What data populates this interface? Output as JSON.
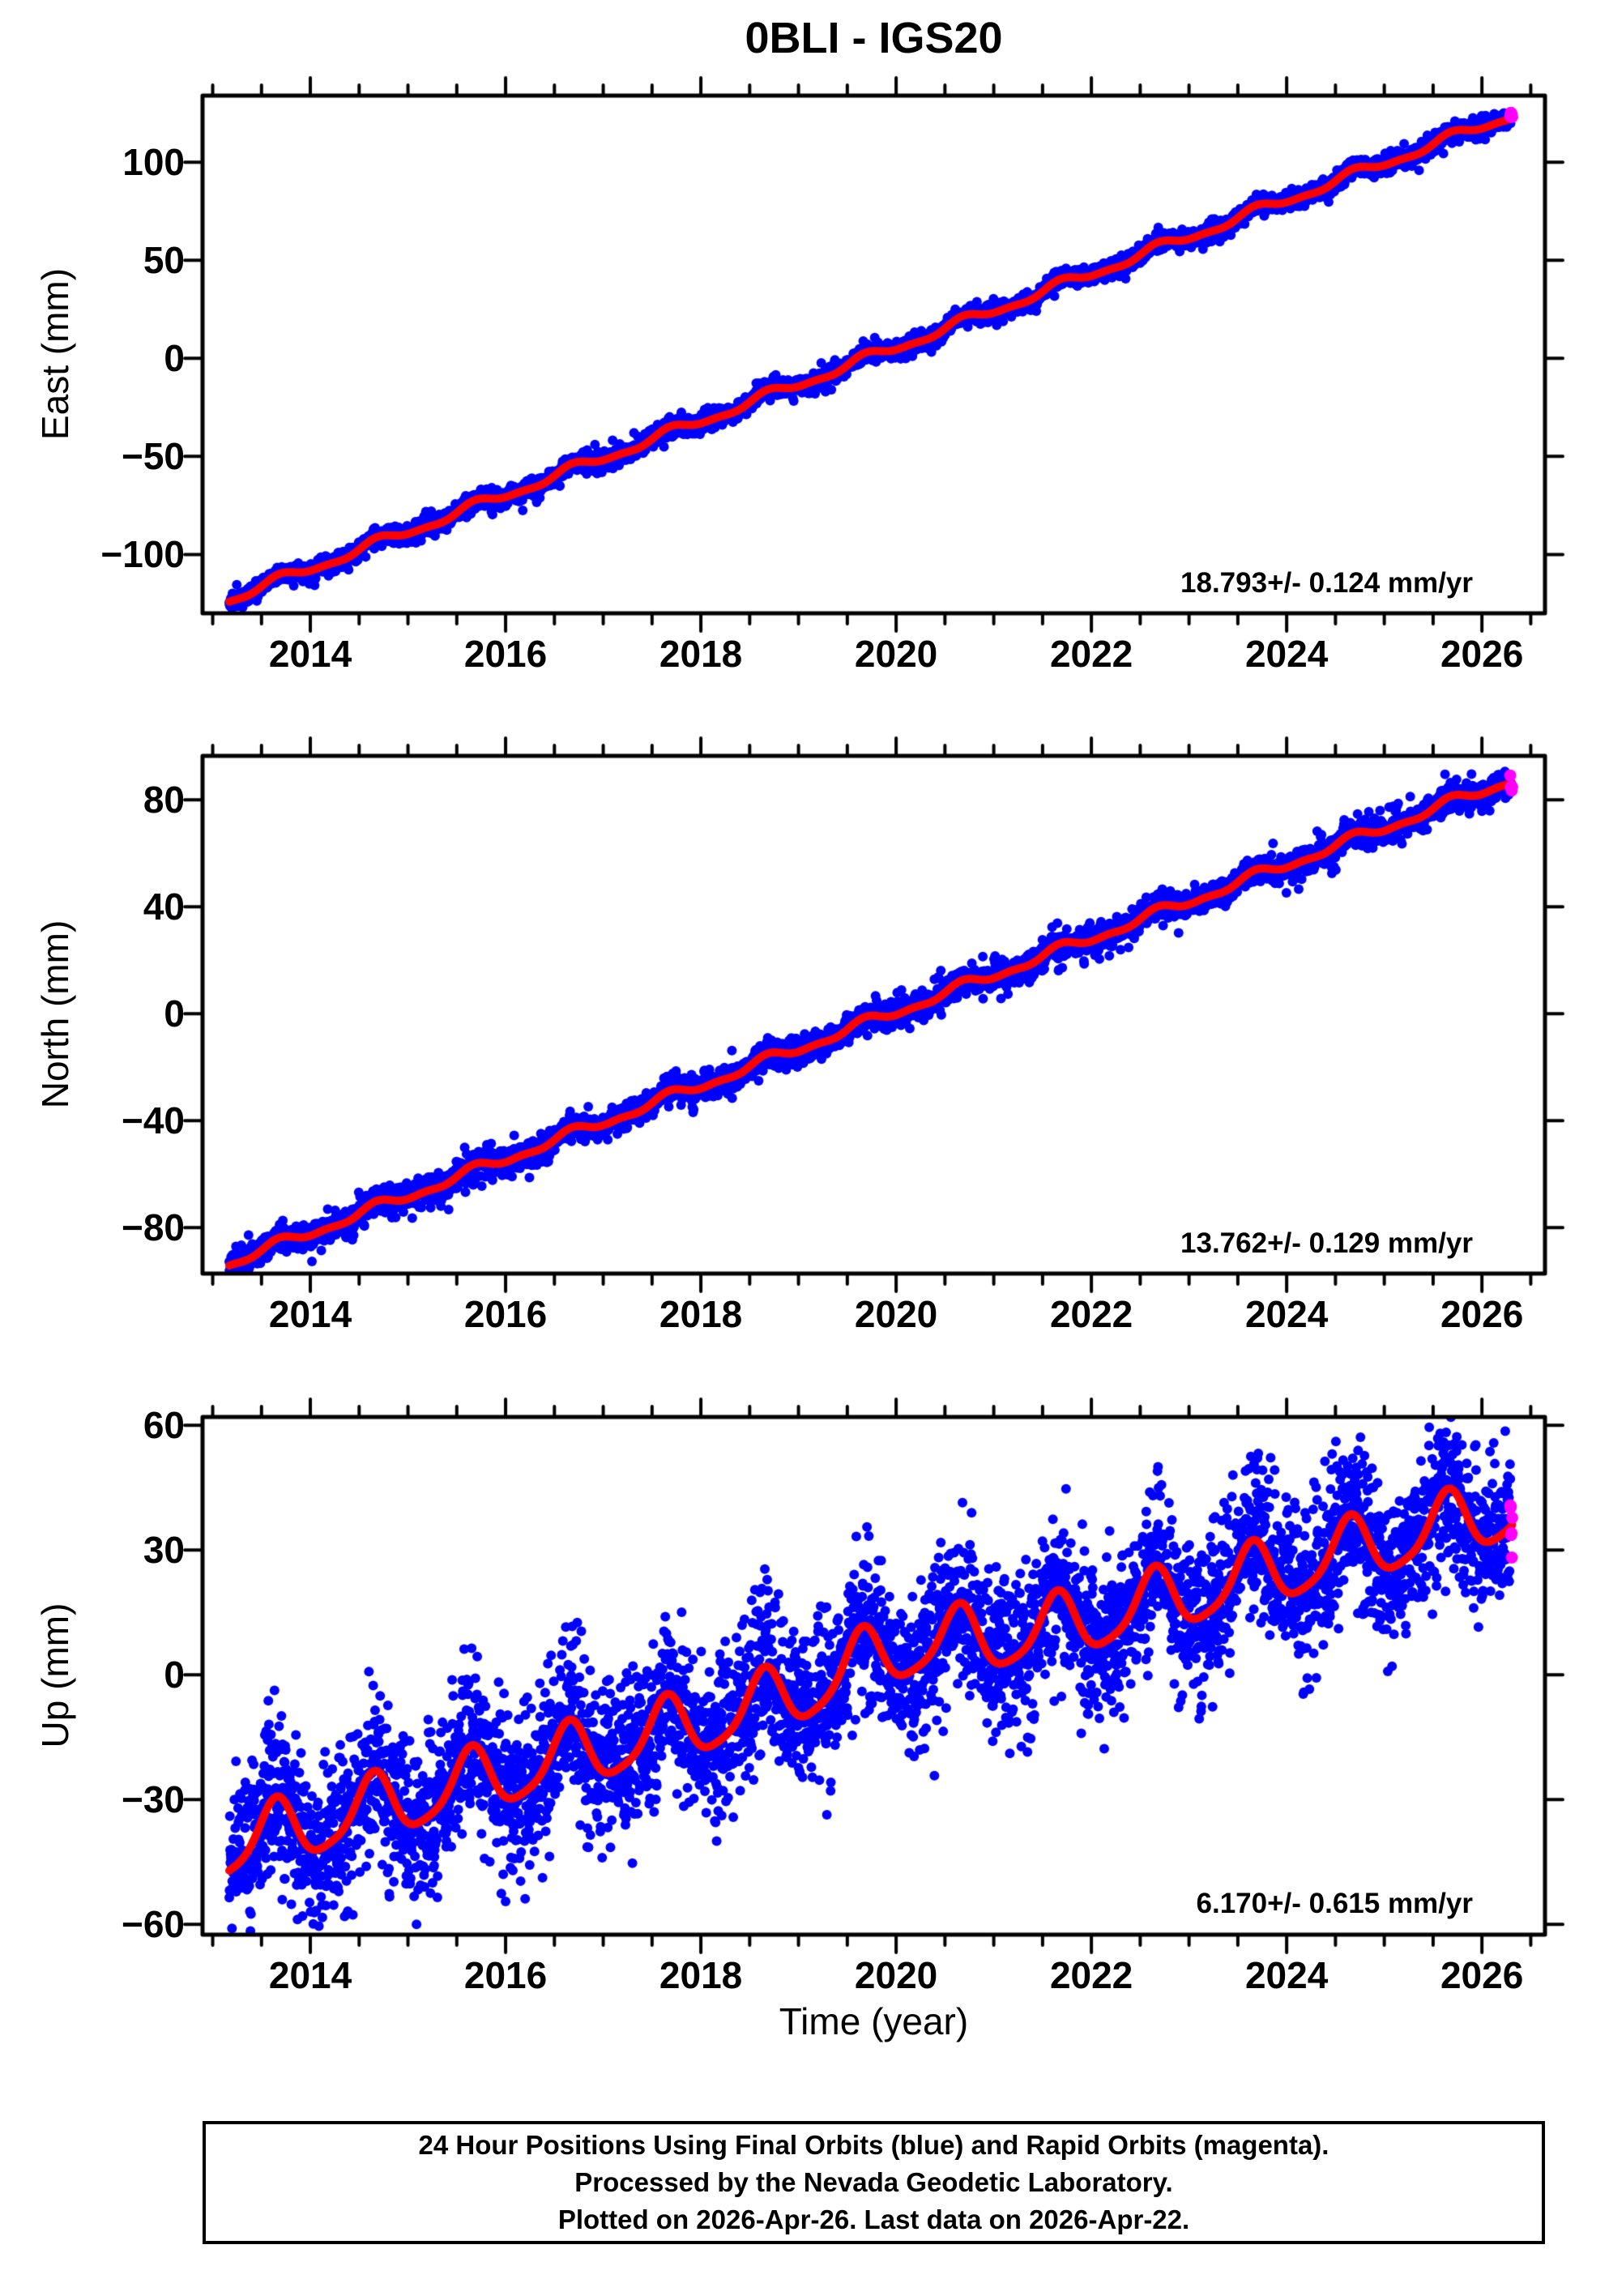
{
  "title": "0BLI - IGS20",
  "xlabel": "Time (year)",
  "footer": {
    "lines": [
      "24 Hour Positions Using Final Orbits (blue) and Rapid Orbits (magenta).",
      "Processed by the Nevada Geodetic Laboratory.",
      "Plotted on 2026-Apr-26. Last data on 2026-Apr-22."
    ]
  },
  "colors": {
    "final_orbit_points": "#0000ff",
    "rapid_orbit_points": "#ff00ff",
    "model_fit_line": "#ff0000",
    "frame": "#000000"
  },
  "chart_data": [
    {
      "type": "scatter",
      "ylabel": "East (mm)",
      "annotation": "18.793+/- 0.124 mm/yr",
      "trend_mm_per_yr": 18.793,
      "uncertainty_mm_per_yr": 0.124,
      "x_range_years": [
        2012.896,
        2026.646
      ],
      "ylim": [
        134,
        -130
      ],
      "yticks": [
        100,
        50,
        0,
        -50,
        -100
      ],
      "ytick_labels": [
        "100",
        "50",
        "0",
        "−50",
        "−100"
      ],
      "series_start": {
        "t": 2013.17,
        "value_mm": -124
      },
      "series_end": {
        "t": 2026.31,
        "value_mm": 126
      },
      "model": {
        "rate": 18.793,
        "t_zero": 2019.7,
        "seasonal_amp": 2.3,
        "seasonal_peak_frac": 0.7,
        "semiannual_amp": 0.9,
        "noise_sigma": 2.0,
        "wide_sigma": 4.0,
        "wide_frac": 0.1,
        "clamp": 9,
        "outlier_p": 0.003,
        "outlier_mag": 6,
        "bump_amp": 0,
        "bump_t": 2020.1,
        "bump_w": 0.9
      },
      "rapid": {
        "t_start": 2026.29,
        "t_end": 2026.31,
        "n": 5,
        "sigma": 1.2,
        "offset": 1.5,
        "radius": 7.5
      },
      "legend": [
        "Final Orbits (blue)",
        "Rapid Orbits (magenta)",
        "model fit (red)"
      ]
    },
    {
      "type": "scatter",
      "ylabel": "North (mm)",
      "annotation": "13.762+/- 0.129 mm/yr",
      "trend_mm_per_yr": 13.762,
      "uncertainty_mm_per_yr": 0.129,
      "x_range_years": [
        2012.896,
        2026.646
      ],
      "ylim": [
        96.4,
        -97.2
      ],
      "yticks": [
        80,
        40,
        0,
        -40,
        -80
      ],
      "ytick_labels": [
        "80",
        "40",
        "0",
        "−40",
        "−80"
      ],
      "series_start": {
        "t": 2013.17,
        "value_mm": -93
      },
      "series_end": {
        "t": 2026.31,
        "value_mm": 88
      },
      "model": {
        "rate": 13.762,
        "t_zero": 2019.95,
        "seasonal_amp": 1.7,
        "seasonal_peak_frac": 0.68,
        "semiannual_amp": 0.8,
        "noise_sigma": 2.2,
        "wide_sigma": 4.5,
        "wide_frac": 0.1,
        "clamp": 10,
        "outlier_p": 0.003,
        "outlier_mag": 6,
        "bump_amp": 0,
        "bump_t": 2020.1,
        "bump_w": 0.9
      },
      "rapid": {
        "t_start": 2026.29,
        "t_end": 2026.31,
        "n": 5,
        "sigma": 1.6,
        "offset": -1.0,
        "radius": 7.5
      },
      "legend": [
        "Final Orbits (blue)",
        "Rapid Orbits (magenta)",
        "model fit (red)"
      ]
    },
    {
      "type": "scatter",
      "ylabel": "Up (mm)",
      "annotation": "6.170+/- 0.615 mm/yr",
      "trend_mm_per_yr": 6.17,
      "uncertainty_mm_per_yr": 0.615,
      "x_range_years": [
        2012.896,
        2026.646
      ],
      "ylim": [
        62,
        -62.5
      ],
      "yticks": [
        60,
        30,
        0,
        -30,
        -60
      ],
      "ytick_labels": [
        "60",
        "30",
        "0",
        "−30",
        "−60"
      ],
      "series_start": {
        "t": 2013.17,
        "value_mm": -41
      },
      "series_end": {
        "t": 2026.31,
        "value_mm": 36
      },
      "model": {
        "rate": 6.17,
        "t_zero": 2019.85,
        "seasonal_amp": 7.5,
        "seasonal_peak_frac": 0.64,
        "semiannual_amp": 1.5,
        "noise_sigma": 8.0,
        "wide_sigma": 14.0,
        "wide_frac": 0.15,
        "clamp": 26,
        "outlier_p": 0.004,
        "outlier_mag": 15,
        "bump_amp": 5,
        "bump_t": 2020.1,
        "bump_w": 0.9
      },
      "rapid": {
        "t_start": 2026.29,
        "t_end": 2026.31,
        "n": 7,
        "sigma": 5.0,
        "offset": 2.0,
        "radius": 7.5
      },
      "legend": [
        "Final Orbits (blue)",
        "Rapid Orbits (magenta)",
        "model fit (red)"
      ]
    }
  ],
  "xticks_major": [
    2014,
    2016,
    2018,
    2020,
    2022,
    2024,
    2026
  ],
  "xtick_labels": [
    "2014",
    "2016",
    "2018",
    "2020",
    "2022",
    "2024",
    "2026"
  ],
  "xticks_minor_step": 0.5,
  "data_start_year": 2013.17,
  "data_end_year": 2026.31
}
